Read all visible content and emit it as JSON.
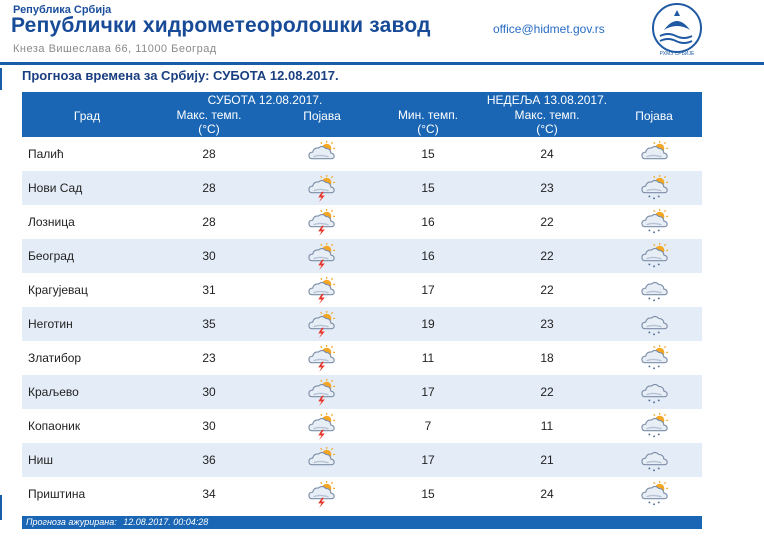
{
  "header": {
    "country": "Република Србија",
    "institute": "Републички хидрометеоролошки завод",
    "address": "Кнеза Вишеслава 66, 11000 Београд",
    "email": "office@hidmet.gov.rs",
    "logo_text": "РХМЗ СРБИЈЕ"
  },
  "forecast": {
    "title": "Прогноза времена за Србију: СУБОТА  12.08.2017.",
    "day1_label": "СУБОТА  12.08.2017.",
    "day2_label": "НЕДЕЉА  13.08.2017.",
    "col_city": "Град",
    "col_max": "Макс. темп.",
    "col_min": "Мин. темп.",
    "col_unit": "(°C)",
    "col_phen": "Појава",
    "rows": [
      {
        "city": "Палић",
        "d1_max": "28",
        "d1_icon": "cloud-sun-icon",
        "d2_min": "15",
        "d2_max": "24",
        "d2_icon": "sun-cloud-icon"
      },
      {
        "city": "Нови Сад",
        "d1_max": "28",
        "d1_icon": "thunderstorm-icon",
        "d2_min": "15",
        "d2_max": "23",
        "d2_icon": "sun-cloud-rain-icon"
      },
      {
        "city": "Лозница",
        "d1_max": "28",
        "d1_icon": "thunderstorm-icon",
        "d2_min": "16",
        "d2_max": "22",
        "d2_icon": "sun-cloud-rain-icon"
      },
      {
        "city": "Београд",
        "d1_max": "30",
        "d1_icon": "thunderstorm-icon",
        "d2_min": "16",
        "d2_max": "22",
        "d2_icon": "sun-cloud-rain-icon"
      },
      {
        "city": "Крагујевац",
        "d1_max": "31",
        "d1_icon": "thunderstorm-icon",
        "d2_min": "17",
        "d2_max": "22",
        "d2_icon": "cloud-rain-icon"
      },
      {
        "city": "Неготин",
        "d1_max": "35",
        "d1_icon": "thunderstorm-icon",
        "d2_min": "19",
        "d2_max": "23",
        "d2_icon": "cloud-rain-icon"
      },
      {
        "city": "Златибор",
        "d1_max": "23",
        "d1_icon": "thunderstorm-icon",
        "d2_min": "11",
        "d2_max": "18",
        "d2_icon": "sun-cloud-rain-icon"
      },
      {
        "city": "Краљево",
        "d1_max": "30",
        "d1_icon": "thunderstorm-icon",
        "d2_min": "17",
        "d2_max": "22",
        "d2_icon": "cloud-rain-icon"
      },
      {
        "city": "Копаоник",
        "d1_max": "30",
        "d1_icon": "thunderstorm-icon",
        "d2_min": "7",
        "d2_max": "11",
        "d2_icon": "sun-cloud-rain-icon"
      },
      {
        "city": "Ниш",
        "d1_max": "36",
        "d1_icon": "cloud-sun-icon",
        "d2_min": "17",
        "d2_max": "21",
        "d2_icon": "cloud-rain-icon"
      },
      {
        "city": "Приштина",
        "d1_max": "34",
        "d1_icon": "thunderstorm-icon",
        "d2_min": "15",
        "d2_max": "24",
        "d2_icon": "sun-cloud-rain-icon"
      }
    ],
    "updated_label": "Прогноза ажурирана:",
    "updated_value": "12.08.2017. 00:04:28"
  },
  "colors": {
    "brand_blue": "#1a66b5",
    "row_alt": "#e3ecf7",
    "sun": "#f5a623",
    "lightning": "#e8352b",
    "cloud": "#9fb0c6"
  }
}
